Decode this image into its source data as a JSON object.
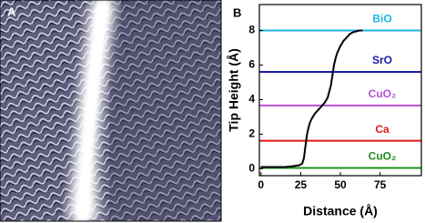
{
  "panel_labels": [
    "A",
    "B"
  ],
  "chart_data": {
    "type": "line",
    "x_label": "Distance (Å)",
    "y_label": "Tip Height (Å)",
    "x": [
      0,
      5,
      10,
      15,
      20,
      24,
      26,
      27,
      28,
      29,
      30,
      31,
      32,
      34,
      36,
      38,
      40,
      42,
      44,
      45,
      46,
      47,
      48,
      50,
      52,
      54,
      56,
      58,
      60,
      62,
      64
    ],
    "series": [
      {
        "color": "#000000",
        "values": [
          0.1,
          0.1,
          0.1,
          0.1,
          0.15,
          0.2,
          0.3,
          0.6,
          1.3,
          2.0,
          2.4,
          2.7,
          2.9,
          3.2,
          3.4,
          3.6,
          3.8,
          4.1,
          4.8,
          5.4,
          6.0,
          6.4,
          6.7,
          7.1,
          7.4,
          7.6,
          7.8,
          7.9,
          7.95,
          8.0,
          8.0
        ]
      }
    ],
    "levels": [
      {
        "name": "BiO",
        "value": 8,
        "color": "#1fb6e6"
      },
      {
        "name": "SrO",
        "value": 5.6,
        "color": "#1a1aa8"
      },
      {
        "name": "CuO₂",
        "value": 3.66,
        "color": "#b84fd6"
      },
      {
        "name": "Ca",
        "value": 1.62,
        "color": "#e01818"
      },
      {
        "name": "CuO₂",
        "value": 0.05,
        "color": "#1f8f1f"
      }
    ],
    "xlim": [
      -1,
      101
    ],
    "ylim": [
      -0.4,
      9.5
    ],
    "xticks": [
      0,
      25,
      50,
      75
    ],
    "yticks": [
      0,
      2,
      4,
      6,
      8
    ]
  }
}
